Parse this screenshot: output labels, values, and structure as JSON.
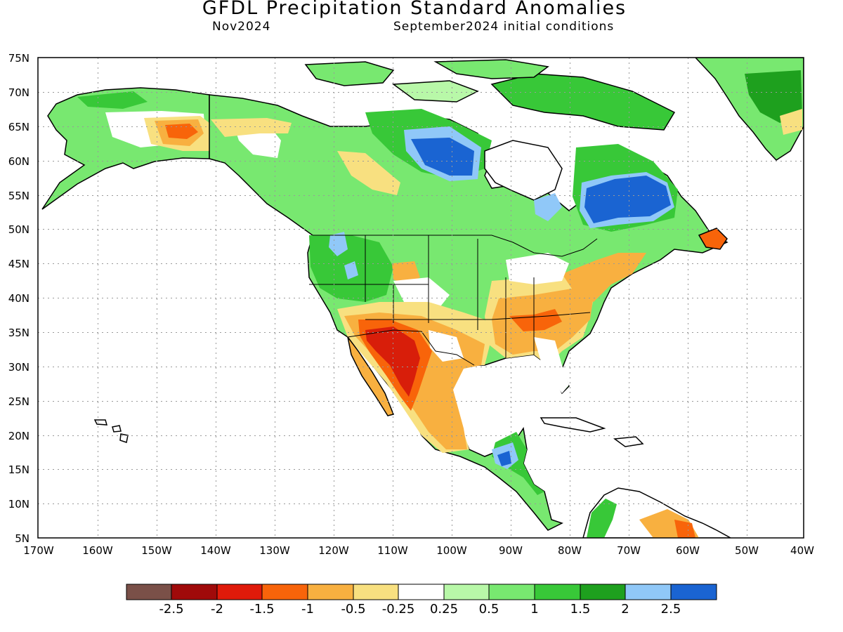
{
  "map": {
    "title": "GFDL Precipitation Standard Anomalies",
    "month": "Nov2024",
    "init": "September2024 initial conditions",
    "lat_labels": [
      "75N",
      "70N",
      "65N",
      "60N",
      "55N",
      "50N",
      "45N",
      "40N",
      "35N",
      "30N",
      "25N",
      "20N",
      "15N",
      "10N",
      "5N"
    ],
    "lon_labels": [
      "170W",
      "160W",
      "150W",
      "140W",
      "130W",
      "120W",
      "110W",
      "100W",
      "90W",
      "80W",
      "70W",
      "60W",
      "50W",
      "40W"
    ],
    "colorbar": {
      "colors": [
        "#7a5048",
        "#a00a0a",
        "#e01a0a",
        "#f8640a",
        "#f8b040",
        "#f8e080",
        "#ffffff",
        "#b8f8a8",
        "#78e870",
        "#38c838",
        "#1ea01e",
        "#90c8f8",
        "#1a64d2"
      ],
      "labels": [
        "-2.5",
        "-2",
        "-1.5",
        "-1",
        "-0.5",
        "-0.25",
        "0.25",
        "0.5",
        "1",
        "1.5",
        "2",
        "2.5"
      ]
    },
    "anomaly_colors": {
      "dry_strong": "#d81e0a",
      "dry_moderate": "#f8640a",
      "dry_weak": "#f8b040",
      "dry_slight": "#f8e080",
      "wet_slight": "#b8f8a8",
      "wet_weak": "#78e870",
      "wet_moderate": "#38c838",
      "wet_strong": "#1ea01e",
      "very_wet": "#90c8f8",
      "extreme_wet": "#1a64d2"
    }
  }
}
